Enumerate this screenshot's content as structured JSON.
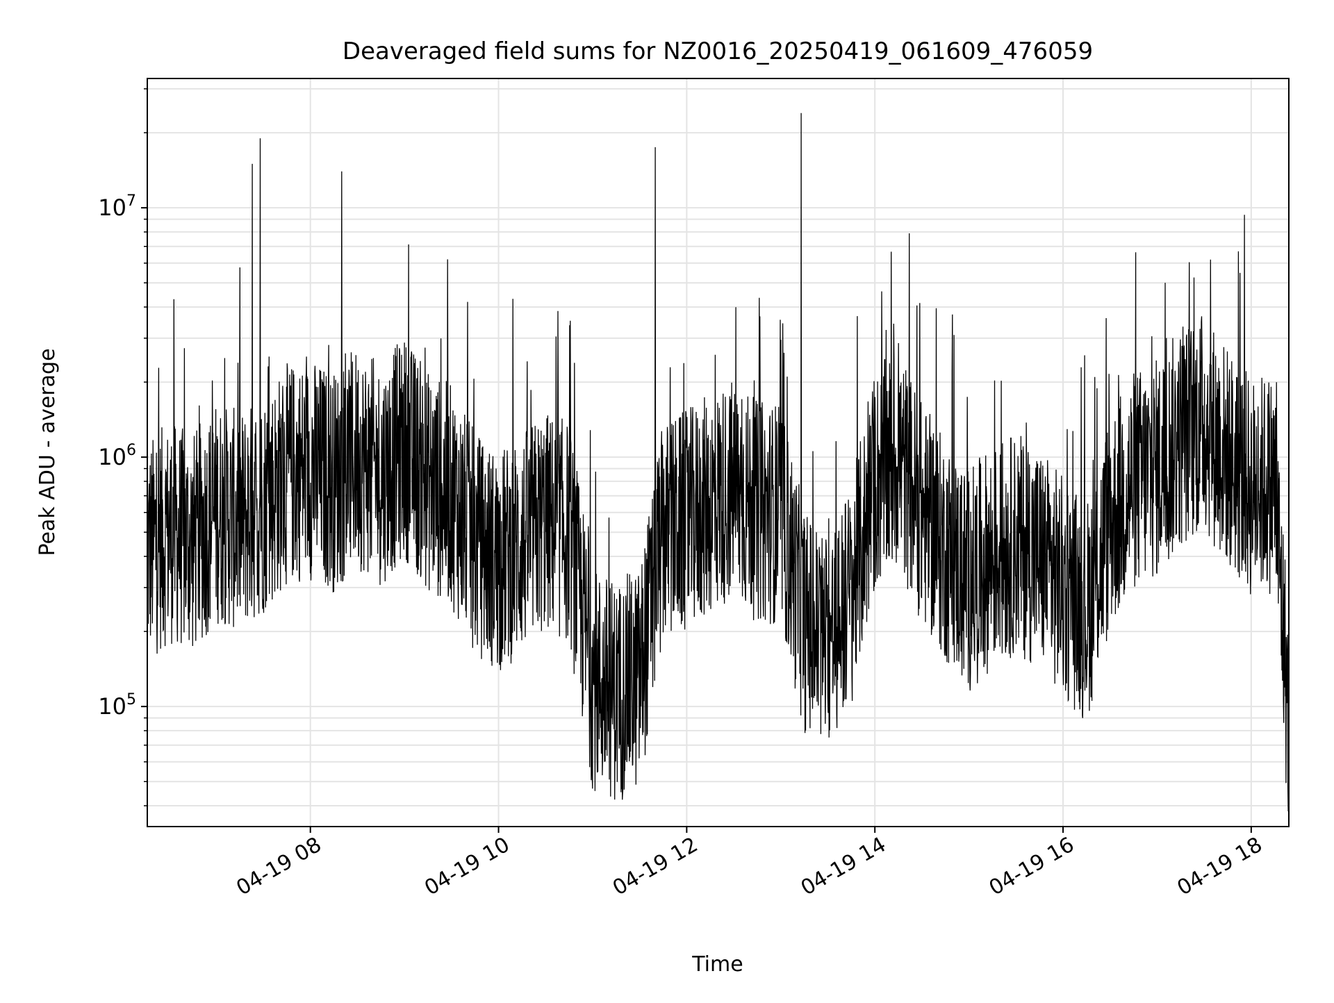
{
  "chart_data": {
    "type": "line",
    "title": "Deaveraged field sums for NZ0016_20250419_061609_476059",
    "xlabel": "Time",
    "ylabel": "Peak ADU - average",
    "x_range": [
      "2025-04-19T06:16",
      "2025-04-19T18:24"
    ],
    "ylim": [
      33000,
      33000000
    ],
    "y_scale": "log",
    "grid": true,
    "x_ticks": [
      "04-19 08",
      "04-19 10",
      "04-19 12",
      "04-19 14",
      "04-19 16",
      "04-19 18"
    ],
    "x_tick_times": [
      "2025-04-19T08:00",
      "2025-04-19T10:00",
      "2025-04-19T12:00",
      "2025-04-19T14:00",
      "2025-04-19T16:00",
      "2025-04-19T18:00"
    ],
    "y_ticks": [
      {
        "base": "10",
        "exp": "5",
        "value": 100000
      },
      {
        "base": "10",
        "exp": "6",
        "value": 1000000
      },
      {
        "base": "10",
        "exp": "7",
        "value": 10000000
      }
    ],
    "series": [
      {
        "color": "#000000",
        "x": [
          "2025-04-19T06:16",
          "2025-04-19T06:30",
          "2025-04-19T06:45",
          "2025-04-19T07:00",
          "2025-04-19T07:15",
          "2025-04-19T07:30",
          "2025-04-19T07:45",
          "2025-04-19T08:00",
          "2025-04-19T08:15",
          "2025-04-19T08:30",
          "2025-04-19T08:45",
          "2025-04-19T09:00",
          "2025-04-19T09:15",
          "2025-04-19T09:30",
          "2025-04-19T09:45",
          "2025-04-19T10:00",
          "2025-04-19T10:15",
          "2025-04-19T10:30",
          "2025-04-19T10:45",
          "2025-04-19T11:00",
          "2025-04-19T11:15",
          "2025-04-19T11:30",
          "2025-04-19T11:45",
          "2025-04-19T12:00",
          "2025-04-19T12:15",
          "2025-04-19T12:30",
          "2025-04-19T12:45",
          "2025-04-19T13:00",
          "2025-04-19T13:15",
          "2025-04-19T13:30",
          "2025-04-19T13:45",
          "2025-04-19T14:00",
          "2025-04-19T14:15",
          "2025-04-19T14:30",
          "2025-04-19T14:45",
          "2025-04-19T15:00",
          "2025-04-19T15:15",
          "2025-04-19T15:30",
          "2025-04-19T15:45",
          "2025-04-19T16:00",
          "2025-04-19T16:15",
          "2025-04-19T16:30",
          "2025-04-19T16:45",
          "2025-04-19T17:00",
          "2025-04-19T17:15",
          "2025-04-19T17:30",
          "2025-04-19T17:45",
          "2025-04-19T18:00",
          "2025-04-19T18:15",
          "2025-04-19T18:24"
        ],
        "y": [
          420000,
          500000,
          450000,
          600000,
          550000,
          650000,
          850000,
          900000,
          800000,
          1000000,
          850000,
          1100000,
          800000,
          700000,
          450000,
          380000,
          450000,
          550000,
          500000,
          130000,
          115000,
          130000,
          500000,
          550000,
          650000,
          750000,
          600000,
          600000,
          220000,
          180000,
          280000,
          800000,
          1000000,
          600000,
          420000,
          320000,
          400000,
          450000,
          400000,
          300000,
          240000,
          550000,
          800000,
          900000,
          1200000,
          1400000,
          1000000,
          750000,
          800000,
          85000
        ],
        "spikes": [
          {
            "x": "2025-04-19T06:33",
            "y": 4300000
          },
          {
            "x": "2025-04-19T07:23",
            "y": 15000000
          },
          {
            "x": "2025-04-19T07:28",
            "y": 19000000
          },
          {
            "x": "2025-04-19T08:20",
            "y": 14000000
          },
          {
            "x": "2025-04-19T11:40",
            "y": 17500000
          },
          {
            "x": "2025-04-19T13:13",
            "y": 24000000
          }
        ]
      }
    ]
  }
}
